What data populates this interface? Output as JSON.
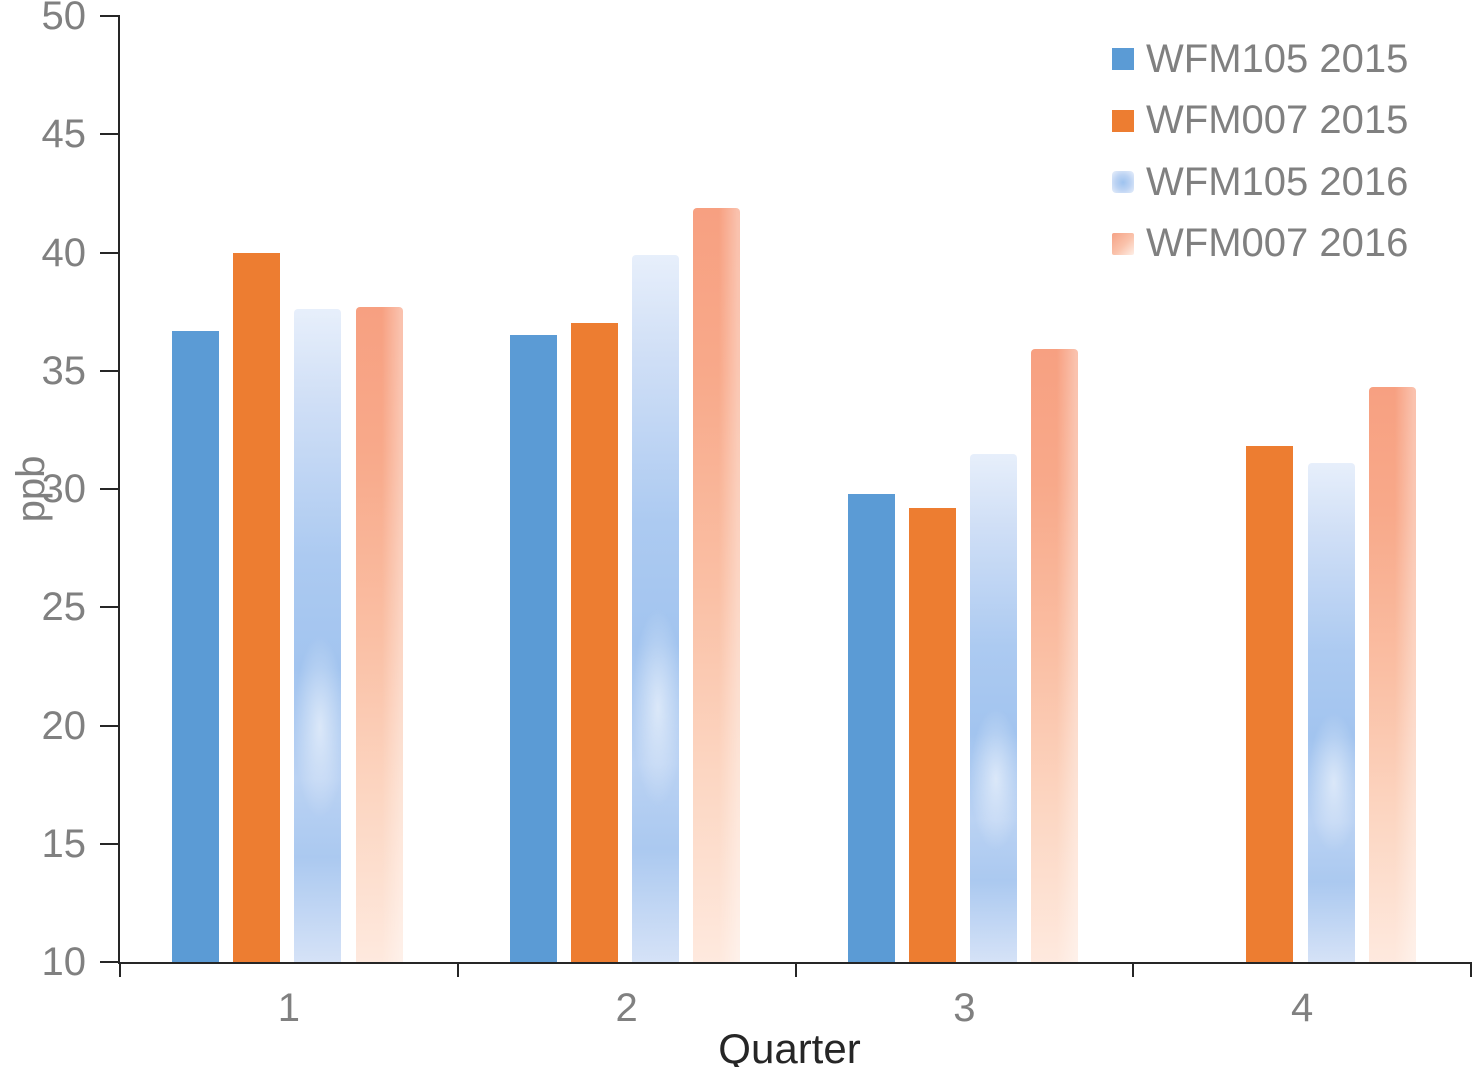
{
  "chart_data": {
    "type": "bar",
    "title": "",
    "xlabel": "Quarter",
    "ylabel": "ppb",
    "categories": [
      "1",
      "2",
      "3",
      "4"
    ],
    "series": [
      {
        "name": "WFM105 2015",
        "color": "#5B9BD5",
        "fill": "solid-blue",
        "values": [
          36.7,
          36.5,
          29.8,
          null
        ]
      },
      {
        "name": "WFM007 2015",
        "color": "#ED7D31",
        "fill": "solid-orange",
        "values": [
          40.0,
          37.0,
          29.2,
          31.8
        ]
      },
      {
        "name": "WFM105 2016",
        "color": "#A7C8F0",
        "fill": "grad-blue",
        "values": [
          37.6,
          39.9,
          31.5,
          31.1
        ]
      },
      {
        "name": "WFM007 2016",
        "color": "#F8A586",
        "fill": "grad-orange",
        "values": [
          37.7,
          41.9,
          35.9,
          34.3
        ]
      }
    ],
    "ylim": [
      10,
      50
    ],
    "yticks": [
      10,
      15,
      20,
      25,
      30,
      35,
      40,
      45,
      50
    ],
    "grid": false,
    "legend_position": "top-right",
    "axis_color": "#262626",
    "tick_label_color": "#808080",
    "x_title_color": "#262626"
  }
}
